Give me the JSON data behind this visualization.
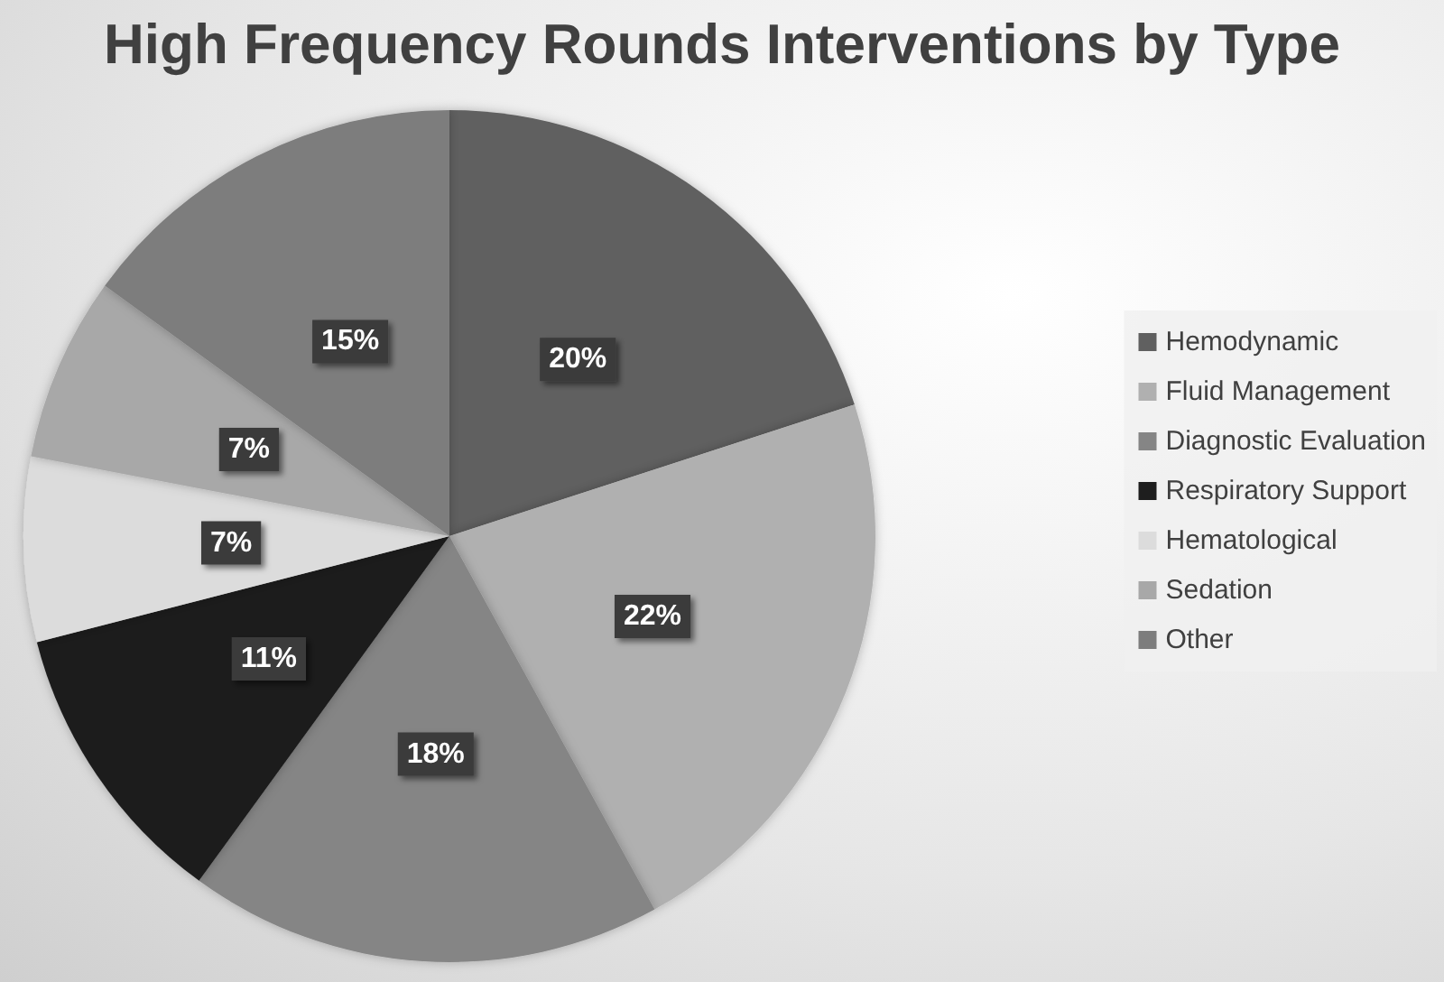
{
  "chart_data": {
    "type": "pie",
    "title": "High Frequency Rounds Interventions by Type",
    "categories": [
      "Hemodynamic",
      "Fluid Management",
      "Diagnostic Evaluation",
      "Respiratory Support",
      "Hematological",
      "Sedation",
      "Other"
    ],
    "values": [
      20,
      22,
      18,
      11,
      7,
      7,
      15
    ],
    "value_labels": [
      "20%",
      "22%",
      "18%",
      "11%",
      "7%",
      "7%",
      "15%"
    ],
    "colors": [
      "#606060",
      "#b0b0b0",
      "#858585",
      "#1e1e1e",
      "#dcdcdc",
      "#a8a8a8",
      "#7d7d7d"
    ],
    "legend": "right"
  }
}
